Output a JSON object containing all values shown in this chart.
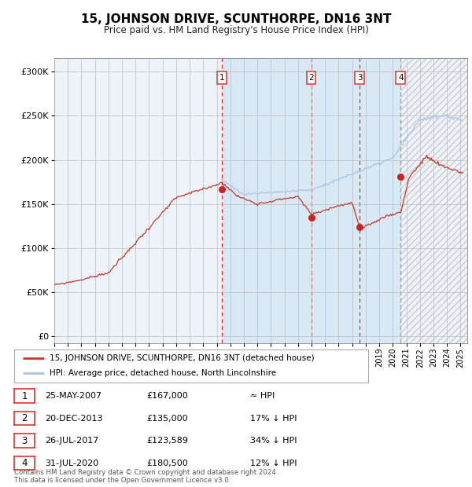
{
  "title": "15, JOHNSON DRIVE, SCUNTHORPE, DN16 3NT",
  "subtitle": "Price paid vs. HM Land Registry's House Price Index (HPI)",
  "legend_line1": "15, JOHNSON DRIVE, SCUNTHORPE, DN16 3NT (detached house)",
  "legend_line2": "HPI: Average price, detached house, North Lincolnshire",
  "footer1": "Contains HM Land Registry data © Crown copyright and database right 2024.",
  "footer2": "This data is licensed under the Open Government Licence v3.0.",
  "transactions": [
    {
      "num": 1,
      "date": "25-MAY-2007",
      "price": 167000,
      "year": 2007.39,
      "hpi_rel": "≈ HPI"
    },
    {
      "num": 2,
      "date": "20-DEC-2013",
      "price": 135000,
      "year": 2013.97,
      "hpi_rel": "17% ↓ HPI"
    },
    {
      "num": 3,
      "date": "26-JUL-2017",
      "price": 123589,
      "year": 2017.56,
      "hpi_rel": "34% ↓ HPI"
    },
    {
      "num": 4,
      "date": "31-JUL-2020",
      "price": 180500,
      "year": 2020.58,
      "hpi_rel": "12% ↓ HPI"
    }
  ],
  "hpi_color": "#aac4e0",
  "price_color": "#c0392b",
  "background_color": "#ffffff",
  "chart_bg": "#eef3fa",
  "shade_color": "#d8e8f5",
  "grid_color": "#bbbbbb",
  "yticks": [
    0,
    50000,
    100000,
    150000,
    200000,
    250000,
    300000
  ],
  "ylim": [
    -8000,
    315000
  ],
  "xmin": 1995,
  "xmax": 2025.5
}
